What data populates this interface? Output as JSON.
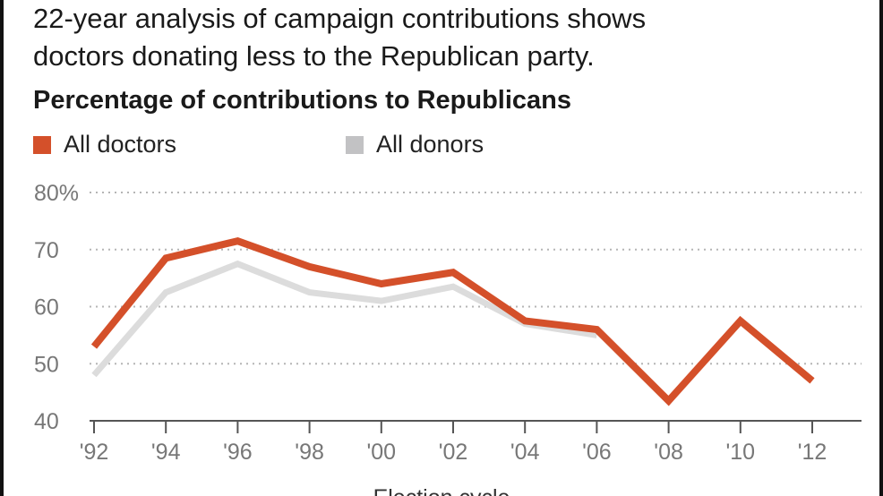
{
  "header": {
    "subtitle": "22-year analysis of campaign contributions shows\ndoctors donating less to the Republican party.",
    "chart_title": "Percentage of contributions to Republicans"
  },
  "legend": {
    "items": [
      {
        "label": "All doctors",
        "color": "#d4502a"
      },
      {
        "label": "All donors",
        "color": "#c2c2c4"
      }
    ]
  },
  "chart_data": {
    "type": "line",
    "title": "Percentage of contributions to Republicans",
    "xlabel": "Election cycle",
    "ylabel": "",
    "categories": [
      "'92",
      "'94",
      "'96",
      "'98",
      "'00",
      "'02",
      "'04",
      "'06",
      "'08",
      "'10",
      "'12"
    ],
    "y_ticks": [
      "80%",
      "70",
      "60",
      "50",
      "40"
    ],
    "ylim": [
      40,
      80
    ],
    "grid": true,
    "legend_position": "top-left",
    "series": [
      {
        "name": "All doctors",
        "color": "#d4502a",
        "values": [
          53,
          68.5,
          71.5,
          67,
          64,
          66,
          57.5,
          56,
          43.5,
          57.5,
          47
        ]
      },
      {
        "name": "All donors",
        "color": "#dcdcdc",
        "values": [
          48,
          62.5,
          67.5,
          62.5,
          61,
          63.5,
          57,
          55,
          null,
          null,
          null
        ]
      }
    ]
  }
}
